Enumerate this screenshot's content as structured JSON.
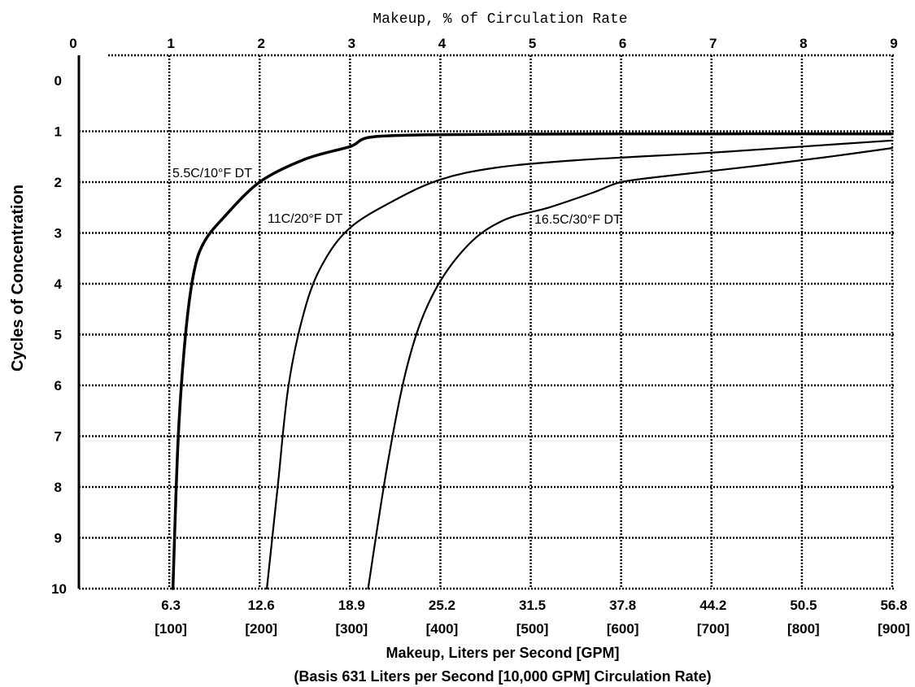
{
  "chart_data": {
    "type": "line",
    "title_top_axis": "Makeup, % of Circulation Rate",
    "ylabel": "Cycles of Concentration",
    "xlabel_line1": "Makeup, Liters per Second [GPM]",
    "xlabel_line2": "(Basis 631 Liters per Second [10,000 GPM] Circulation Rate)",
    "top_axis": {
      "range": [
        0,
        9
      ],
      "tick_labels": [
        "0",
        "1",
        "2",
        "3",
        "4",
        "5",
        "6",
        "7",
        "8",
        "9"
      ]
    },
    "bottom_axis": {
      "range_percent": [
        0,
        9
      ],
      "tick_labels_lps": [
        "6.3",
        "12.6",
        "18.9",
        "25.2",
        "31.5",
        "37.8",
        "44.2",
        "50.5",
        "56.8"
      ],
      "tick_labels_gpm": [
        "[100]",
        "[200]",
        "[300]",
        "[400]",
        "[500]",
        "[600]",
        "[700]",
        "[800]",
        "[900]"
      ]
    },
    "y_axis": {
      "range": [
        0,
        10
      ],
      "inverted": true,
      "tick_labels": [
        "0",
        "1",
        "2",
        "3",
        "4",
        "5",
        "6",
        "7",
        "8",
        "9",
        "10"
      ]
    },
    "grid": true,
    "grid_style": "dotted",
    "series": [
      {
        "name": "5.5C/10°F DT",
        "weight": "bold",
        "points": [
          [
            1.04,
            10
          ],
          [
            1.1,
            7
          ],
          [
            1.18,
            5
          ],
          [
            1.27,
            3.8
          ],
          [
            1.38,
            3.2
          ],
          [
            1.6,
            2.7
          ],
          [
            2.0,
            2.0
          ],
          [
            2.5,
            1.55
          ],
          [
            3.0,
            1.3
          ],
          [
            3.3,
            1.1
          ],
          [
            4.5,
            1.06
          ],
          [
            6.0,
            1.05
          ],
          [
            9.0,
            1.05
          ]
        ]
      },
      {
        "name": "11C/20°F DT",
        "weight": "normal",
        "points": [
          [
            2.08,
            10
          ],
          [
            2.2,
            8
          ],
          [
            2.32,
            6
          ],
          [
            2.5,
            4.5
          ],
          [
            2.7,
            3.6
          ],
          [
            3.0,
            2.9
          ],
          [
            3.5,
            2.35
          ],
          [
            4.0,
            1.95
          ],
          [
            4.6,
            1.72
          ],
          [
            5.5,
            1.57
          ],
          [
            7.0,
            1.42
          ],
          [
            8.0,
            1.3
          ],
          [
            9.0,
            1.18
          ]
        ]
      },
      {
        "name": "16.5C/30°F DT",
        "weight": "normal",
        "points": [
          [
            3.2,
            10
          ],
          [
            3.42,
            7.5
          ],
          [
            3.65,
            5.5
          ],
          [
            3.92,
            4.2
          ],
          [
            4.3,
            3.25
          ],
          [
            4.7,
            2.75
          ],
          [
            5.2,
            2.5
          ],
          [
            5.7,
            2.2
          ],
          [
            6.0,
            2.0
          ],
          [
            6.5,
            1.88
          ],
          [
            7.5,
            1.68
          ],
          [
            8.3,
            1.5
          ],
          [
            9.0,
            1.33
          ]
        ]
      }
    ],
    "series_labels": [
      "5.5C/10°F DT",
      "11C/20°F DT",
      "16.5C/30°F DT"
    ]
  }
}
